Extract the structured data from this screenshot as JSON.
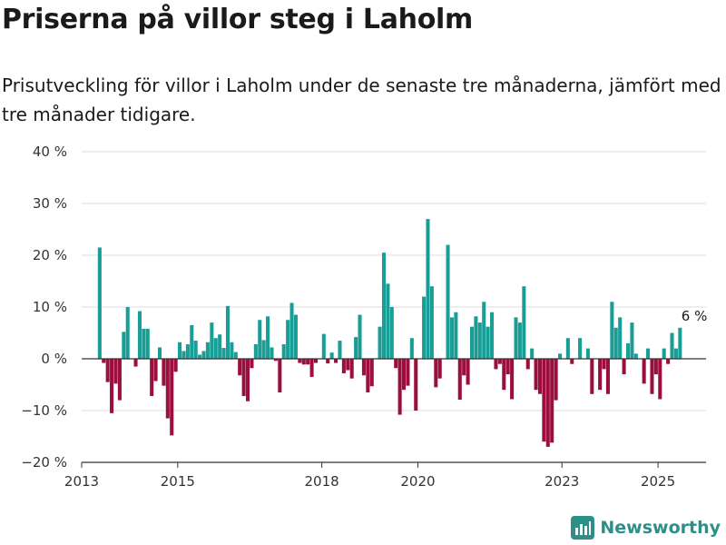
{
  "header": {
    "title": "Priserna på villor steg i Laholm",
    "subtitle": "Prisutveckling för villor i Laholm under de senaste tre månaderna, jämfört med tre månader tidigare."
  },
  "brand": {
    "name": "Newsworthy",
    "icon": "newsworthy-logo-icon"
  },
  "colors": {
    "positive": "#189e97",
    "negative": "#9b0f3f",
    "grid": "#dddddd",
    "axis": "#333333"
  },
  "chart_data": {
    "type": "bar",
    "title": "Priserna på villor steg i Laholm",
    "ylabel": "",
    "xlabel": "",
    "ylim": [
      -20,
      40
    ],
    "yticks": [
      -20,
      -10,
      0,
      10,
      20,
      30,
      40
    ],
    "ytick_labels": [
      "−20 %",
      "−10 %",
      "0 %",
      "10 %",
      "20 %",
      "30 %",
      "40 %"
    ],
    "xticks": [
      2013,
      2015,
      2018,
      2020,
      2023,
      2025
    ],
    "xlim": [
      "2013-01",
      "2025-12"
    ],
    "grid": true,
    "start": "2013-05",
    "frequency": "monthly",
    "values": [
      21.5,
      -0.8,
      -4.5,
      -10.5,
      -4.8,
      -8.0,
      5.2,
      10.0,
      0,
      -1.5,
      9.2,
      5.8,
      5.8,
      -7.2,
      -4.3,
      2.2,
      -5.2,
      -11.5,
      -14.8,
      -2.5,
      3.2,
      1.5,
      2.8,
      6.5,
      3.5,
      0.8,
      1.5,
      3.2,
      7.0,
      4.0,
      4.7,
      2.1,
      10.2,
      3.2,
      1.3,
      -3.2,
      -7.2,
      -8.2,
      -1.8,
      2.8,
      7.5,
      3.6,
      8.2,
      2.2,
      -0.4,
      -6.5,
      2.8,
      7.5,
      10.8,
      8.5,
      -0.8,
      -1.1,
      -1.1,
      -3.5,
      -0.8,
      0,
      4.8,
      -0.9,
      1.2,
      -0.8,
      3.5,
      -2.8,
      -2.2,
      -3.8,
      4.2,
      8.5,
      -3.2,
      -6.5,
      -5.3,
      0.1,
      6.2,
      20.5,
      14.5,
      10.0,
      -1.8,
      -10.8,
      -6.0,
      -5.2,
      4.0,
      -10.0,
      0,
      12.0,
      27.0,
      14.0,
      -5.5,
      -3.8,
      0,
      22.0,
      8.0,
      9.0,
      -7.9,
      -3.2,
      -5.0,
      6.2,
      8.2,
      7.0,
      11.0,
      6.2,
      9.0,
      -2.0,
      -1.0,
      -6.0,
      -3.0,
      -7.8,
      8.0,
      7.0,
      14.0,
      -2.0,
      2.0,
      -6.0,
      -6.8,
      -16.0,
      -17.0,
      -16.2,
      -8.0,
      1.0,
      0,
      4.0,
      -1.0,
      0,
      4.0,
      0,
      2.0,
      -6.8,
      0,
      -6.0,
      -2.0,
      -6.8,
      11.0,
      6.0,
      8.0,
      -3.0,
      3.0,
      7.0,
      1.0,
      0,
      -4.8,
      2.0,
      -6.8,
      -3.0,
      -7.8,
      2.0,
      -1.0,
      5.0,
      2.0,
      6.0
    ],
    "annotations": [
      {
        "x": "2025-10",
        "y": 6,
        "label": "6 %"
      }
    ]
  }
}
